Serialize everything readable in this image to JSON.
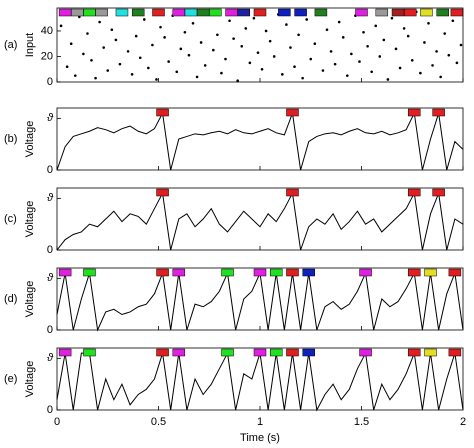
{
  "chart_data": [
    {
      "type": "scatter",
      "panel_label": "(a)",
      "ylabel": "Input",
      "color": "#000000",
      "xlim": [
        0,
        2
      ],
      "xticks": [
        0,
        0.5,
        1,
        1.5,
        2
      ],
      "ylim": [
        0,
        58
      ],
      "yticks": [
        0,
        20,
        40
      ],
      "x": [
        0.02,
        0.05,
        0.07,
        0.09,
        0.11,
        0.13,
        0.15,
        0.17,
        0.19,
        0.21,
        0.23,
        0.25,
        0.27,
        0.29,
        0.31,
        0.33,
        0.35,
        0.37,
        0.39,
        0.41,
        0.43,
        0.45,
        0.47,
        0.49,
        0.51,
        0.53,
        0.55,
        0.57,
        0.59,
        0.61,
        0.63,
        0.65,
        0.67,
        0.69,
        0.71,
        0.73,
        0.75,
        0.77,
        0.79,
        0.81,
        0.83,
        0.85,
        0.87,
        0.89,
        0.91,
        0.93,
        0.95,
        0.97,
        0.99,
        1.01,
        1.03,
        1.05,
        1.07,
        1.09,
        1.11,
        1.13,
        1.15,
        1.17,
        1.19,
        1.21,
        1.23,
        1.25,
        1.27,
        1.29,
        1.31,
        1.33,
        1.35,
        1.37,
        1.39,
        1.41,
        1.43,
        1.45,
        1.47,
        1.49,
        1.51,
        1.53,
        1.55,
        1.57,
        1.59,
        1.61,
        1.63,
        1.65,
        1.67,
        1.69,
        1.71,
        1.73,
        1.75,
        1.77,
        1.79,
        1.81,
        1.83,
        1.85,
        1.87,
        1.89,
        1.91,
        1.93,
        1.95,
        1.97,
        1.99
      ],
      "y": [
        44,
        12,
        30,
        5,
        51,
        22,
        38,
        17,
        3,
        47,
        27,
        9,
        41,
        33,
        14,
        55,
        24,
        6,
        36,
        19,
        49,
        11,
        29,
        2,
        43,
        35,
        16,
        52,
        8,
        26,
        39,
        21,
        46,
        4,
        31,
        13,
        54,
        25,
        37,
        7,
        18,
        48,
        34,
        1,
        28,
        42,
        15,
        50,
        23,
        10,
        40,
        32,
        20,
        53,
        6,
        45,
        27,
        12,
        37,
        3,
        49,
        18,
        30,
        56,
        9,
        41,
        24,
        14,
        47,
        35,
        5,
        22,
        52,
        16,
        39,
        28,
        8,
        44,
        20,
        33,
        2,
        50,
        26,
        11,
        42,
        36,
        17,
        55,
        7,
        31,
        46,
        13,
        24,
        4,
        38,
        21,
        48,
        15,
        29
      ],
      "markers": {
        "x": [
          0.04,
          0.1,
          0.16,
          0.22,
          0.32,
          0.4,
          0.5,
          0.6,
          0.66,
          0.72,
          0.78,
          0.86,
          0.92,
          1.0,
          1.12,
          1.2,
          1.3,
          1.5,
          1.6,
          1.68,
          1.74,
          1.82,
          1.9,
          1.97
        ],
        "colors": [
          "#e020e0",
          "#999999",
          "#20e020",
          "#999999",
          "#20e0e0",
          "#208020",
          "#e02020",
          "#e020e0",
          "#20e0e0",
          "#208020",
          "#20e020",
          "#e020e0",
          "#2020a0",
          "#e02020",
          "#1020c0",
          "#1020c0",
          "#208020",
          "#e020e0",
          "#999999",
          "#a02020",
          "#e02020",
          "#e0e020",
          "#208020",
          "#e02020"
        ]
      }
    },
    {
      "type": "line",
      "panel_label": "(b)",
      "ylabel": "Voltage",
      "color": "#000000",
      "xlim": [
        0,
        2
      ],
      "xticks": [
        0,
        0.5,
        1,
        1.5,
        2
      ],
      "ylim": [
        0,
        1.2
      ],
      "yticks": [
        0,
        {
          "value": 1,
          "label": "ϑ"
        }
      ],
      "x": [
        0,
        0.04,
        0.08,
        0.12,
        0.16,
        0.2,
        0.24,
        0.28,
        0.32,
        0.36,
        0.4,
        0.44,
        0.48,
        0.52,
        0.56,
        0.6,
        0.64,
        0.68,
        0.72,
        0.76,
        0.8,
        0.84,
        0.88,
        0.92,
        0.96,
        1,
        1.04,
        1.08,
        1.12,
        1.16,
        1.2,
        1.24,
        1.28,
        1.32,
        1.36,
        1.4,
        1.44,
        1.48,
        1.52,
        1.56,
        1.6,
        1.64,
        1.68,
        1.72,
        1.76,
        1.8,
        1.84,
        1.88,
        1.92,
        1.96,
        2
      ],
      "values": [
        0,
        0.45,
        0.65,
        0.7,
        0.75,
        0.82,
        0.78,
        0.72,
        0.8,
        0.85,
        0.75,
        0.7,
        0.8,
        1.1,
        0,
        0.6,
        0.65,
        0.7,
        0.68,
        0.72,
        0.75,
        0.7,
        0.78,
        0.72,
        0.7,
        0.75,
        0.8,
        0.72,
        0.68,
        1.1,
        0,
        0.55,
        0.65,
        0.7,
        0.72,
        0.68,
        0.75,
        0.8,
        0.72,
        0.7,
        0.75,
        0.68,
        0.72,
        0.78,
        1.1,
        0,
        0.6,
        1.1,
        0,
        0.55,
        0.4
      ],
      "markers": {
        "x": [
          0.52,
          1.16,
          1.76,
          1.88
        ],
        "colors": [
          "#e02020",
          "#e02020",
          "#e02020",
          "#e02020"
        ]
      }
    },
    {
      "type": "line",
      "panel_label": "(c)",
      "ylabel": "Voltage",
      "color": "#000000",
      "xlim": [
        0,
        2
      ],
      "xticks": [
        0,
        0.5,
        1,
        1.5,
        2
      ],
      "ylim": [
        0,
        1.2
      ],
      "yticks": [
        0,
        {
          "value": 1,
          "label": "ϑ"
        }
      ],
      "x": [
        0,
        0.04,
        0.08,
        0.12,
        0.16,
        0.2,
        0.24,
        0.28,
        0.32,
        0.36,
        0.4,
        0.44,
        0.48,
        0.52,
        0.56,
        0.6,
        0.64,
        0.68,
        0.72,
        0.76,
        0.8,
        0.84,
        0.88,
        0.92,
        0.96,
        1,
        1.04,
        1.08,
        1.12,
        1.16,
        1.2,
        1.24,
        1.28,
        1.32,
        1.36,
        1.4,
        1.44,
        1.48,
        1.52,
        1.56,
        1.6,
        1.64,
        1.68,
        1.72,
        1.76,
        1.8,
        1.84,
        1.88,
        1.92,
        1.96,
        2
      ],
      "values": [
        0,
        0.2,
        0.3,
        0.35,
        0.5,
        0.45,
        0.6,
        0.75,
        0.55,
        0.7,
        0.65,
        0.5,
        0.8,
        1.1,
        0,
        0.6,
        0.7,
        0.45,
        0.6,
        0.8,
        0.5,
        0.35,
        0.55,
        0.75,
        0.6,
        0.45,
        0.7,
        0.55,
        0.8,
        1.1,
        0,
        0.45,
        0.6,
        0.5,
        0.7,
        0.4,
        0.55,
        0.75,
        0.5,
        0.6,
        0.35,
        0.5,
        0.65,
        0.8,
        1.1,
        0,
        0.7,
        1.1,
        0,
        0.6,
        0.5
      ],
      "markers": {
        "x": [
          0.52,
          1.16,
          1.76,
          1.88
        ],
        "colors": [
          "#e02020",
          "#e02020",
          "#e02020",
          "#e02020"
        ]
      }
    },
    {
      "type": "line",
      "panel_label": "(d)",
      "ylabel": "Voltage",
      "color": "#000000",
      "xlim": [
        0,
        2
      ],
      "xticks": [
        0,
        0.5,
        1,
        1.5,
        2
      ],
      "ylim": [
        0,
        1.2
      ],
      "yticks": [
        0,
        {
          "value": 1,
          "label": "ϑ"
        }
      ],
      "x": [
        0,
        0.04,
        0.08,
        0.12,
        0.16,
        0.2,
        0.24,
        0.28,
        0.32,
        0.36,
        0.4,
        0.44,
        0.48,
        0.52,
        0.56,
        0.6,
        0.64,
        0.68,
        0.72,
        0.76,
        0.8,
        0.84,
        0.88,
        0.92,
        0.96,
        1,
        1.04,
        1.08,
        1.12,
        1.16,
        1.2,
        1.24,
        1.28,
        1.32,
        1.36,
        1.4,
        1.44,
        1.48,
        1.52,
        1.56,
        1.6,
        1.64,
        1.68,
        1.72,
        1.76,
        1.8,
        1.84,
        1.88,
        1.92,
        1.96,
        2
      ],
      "values": [
        0.3,
        1.1,
        0,
        0.6,
        1.1,
        0,
        0.35,
        0.4,
        0.3,
        0.35,
        0.45,
        0.5,
        0.7,
        1.1,
        0,
        1.1,
        0,
        0.5,
        0.45,
        0.55,
        0.75,
        1.1,
        0,
        0.6,
        0.75,
        1.1,
        0,
        1.1,
        0,
        1.1,
        0,
        1.1,
        0,
        0.45,
        0.55,
        0.4,
        0.5,
        0.75,
        1.1,
        0,
        0.6,
        0.45,
        0.55,
        0.8,
        1.1,
        0,
        1.1,
        0,
        0.7,
        1.1,
        0
      ],
      "markers": {
        "x": [
          0.04,
          0.16,
          0.52,
          0.6,
          0.84,
          1.0,
          1.08,
          1.16,
          1.24,
          1.52,
          1.76,
          1.84,
          1.96
        ],
        "colors": [
          "#e020e0",
          "#20e020",
          "#e02020",
          "#e020e0",
          "#20e020",
          "#e020e0",
          "#20e020",
          "#e02020",
          "#1020c0",
          "#e020e0",
          "#e02020",
          "#e0e020",
          "#e02020"
        ]
      }
    },
    {
      "type": "line",
      "panel_label": "(e)",
      "ylabel": "Voltage",
      "xlabel": "Time (s)",
      "color": "#000000",
      "xlim": [
        0,
        2
      ],
      "xticks": [
        0,
        0.5,
        1,
        1.5,
        2
      ],
      "ylim": [
        0,
        1.2
      ],
      "yticks": [
        0,
        {
          "value": 1,
          "label": "ϑ"
        }
      ],
      "x": [
        0,
        0.04,
        0.08,
        0.12,
        0.16,
        0.2,
        0.24,
        0.28,
        0.32,
        0.36,
        0.4,
        0.44,
        0.48,
        0.52,
        0.56,
        0.6,
        0.64,
        0.68,
        0.72,
        0.76,
        0.8,
        0.84,
        0.88,
        0.92,
        0.96,
        1,
        1.04,
        1.08,
        1.12,
        1.16,
        1.2,
        1.24,
        1.28,
        1.32,
        1.36,
        1.4,
        1.44,
        1.48,
        1.52,
        1.56,
        1.6,
        1.64,
        1.68,
        1.72,
        1.76,
        1.8,
        1.84,
        1.88,
        1.92,
        1.96,
        2
      ],
      "values": [
        0.2,
        1.1,
        0,
        1.1,
        1.1,
        0,
        0.6,
        0.2,
        0.5,
        0.1,
        0.3,
        0.4,
        0.6,
        1.1,
        0,
        1.1,
        0,
        0.6,
        0.3,
        0.5,
        0.8,
        1.1,
        0,
        0.7,
        0.6,
        1.1,
        0,
        1.1,
        0,
        1.1,
        0,
        1.1,
        0,
        0.3,
        0.5,
        0.2,
        0.4,
        0.8,
        1.1,
        0,
        0.5,
        0.2,
        0.4,
        0.7,
        1.1,
        0,
        1.1,
        0,
        0.6,
        1.1,
        0
      ],
      "markers": {
        "x": [
          0.04,
          0.16,
          0.52,
          0.6,
          0.84,
          1.0,
          1.08,
          1.16,
          1.24,
          1.52,
          1.76,
          1.84,
          1.96
        ],
        "colors": [
          "#e020e0",
          "#20e020",
          "#e02020",
          "#e020e0",
          "#20e020",
          "#e020e0",
          "#20e020",
          "#e02020",
          "#1020c0",
          "#e020e0",
          "#e02020",
          "#e0e020",
          "#e02020"
        ]
      }
    }
  ]
}
